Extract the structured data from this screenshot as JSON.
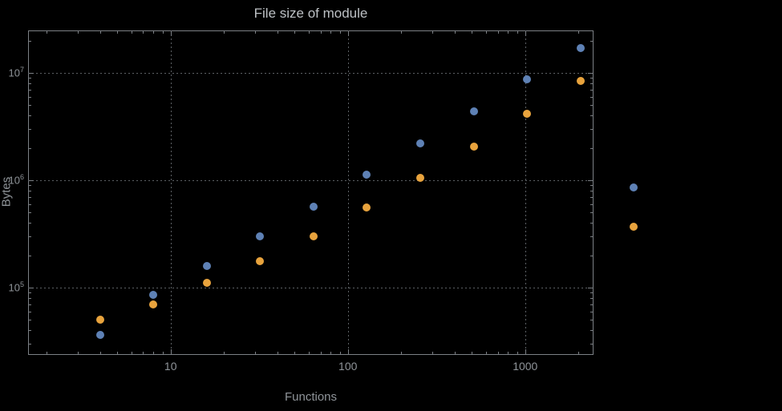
{
  "chart_data": {
    "type": "scatter",
    "title": "File size of module",
    "xlabel": "Functions",
    "ylabel": "Bytes",
    "x_scale": "log",
    "y_scale": "log",
    "xlim": [
      1.57,
      2430
    ],
    "ylim": [
      23600,
      24800000
    ],
    "grid": "dotted gray lines at decade ticks, full frame with inward ticks",
    "legend": "none",
    "x": [
      4,
      8,
      16,
      32,
      64,
      128,
      256,
      512,
      1024,
      2048,
      4096
    ],
    "series": [
      {
        "name": "blue",
        "color": "#5e81b5",
        "values": [
          36000,
          85000,
          160000,
          300000,
          570000,
          1120000,
          2200000,
          4400000,
          8700000,
          17000000,
          850000
        ]
      },
      {
        "name": "orange",
        "color": "#e8a33d",
        "values": [
          50000,
          70000,
          110000,
          175000,
          300000,
          560000,
          1050000,
          2050000,
          4150000,
          8400000,
          370000
        ]
      }
    ],
    "x_ticks": [
      {
        "value": 10,
        "label": "10"
      },
      {
        "value": 100,
        "label": "100"
      },
      {
        "value": 1000,
        "label": "1000"
      }
    ],
    "y_ticks": [
      {
        "value": 100000,
        "base": "10",
        "exp": "5"
      },
      {
        "value": 1000000,
        "base": "10",
        "exp": "6"
      },
      {
        "value": 10000000,
        "base": "10",
        "exp": "7"
      }
    ]
  },
  "colors": {
    "background": "#000000",
    "frame": "#7c8085",
    "grid": "#5c6064",
    "title_text": "#bdc1c5",
    "axis_text": "#8f9499",
    "series_blue": "#5e81b5",
    "series_orange": "#e8a33d"
  }
}
